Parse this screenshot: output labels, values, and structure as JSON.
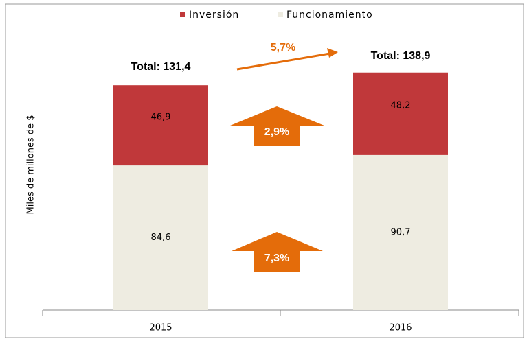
{
  "chart_data": {
    "type": "stacked_bar",
    "y_label": "Miles de millones de $",
    "categories": [
      "2015",
      "2016"
    ],
    "series": [
      {
        "name": "Funcionamiento",
        "color": "#eeece1",
        "values": [
          84.6,
          90.7
        ],
        "value_labels": [
          "84,6",
          "90,7"
        ]
      },
      {
        "name": "Inversión",
        "color": "#c0383a",
        "values": [
          46.9,
          48.2
        ],
        "value_labels": [
          "46,9",
          "48,2"
        ]
      }
    ],
    "annotations": [
      "Total: 131,4",
      "Total: 138,9",
      "5,7%",
      "2,9%",
      "7,3%"
    ],
    "ylim": [
      0,
      140
    ]
  }
}
